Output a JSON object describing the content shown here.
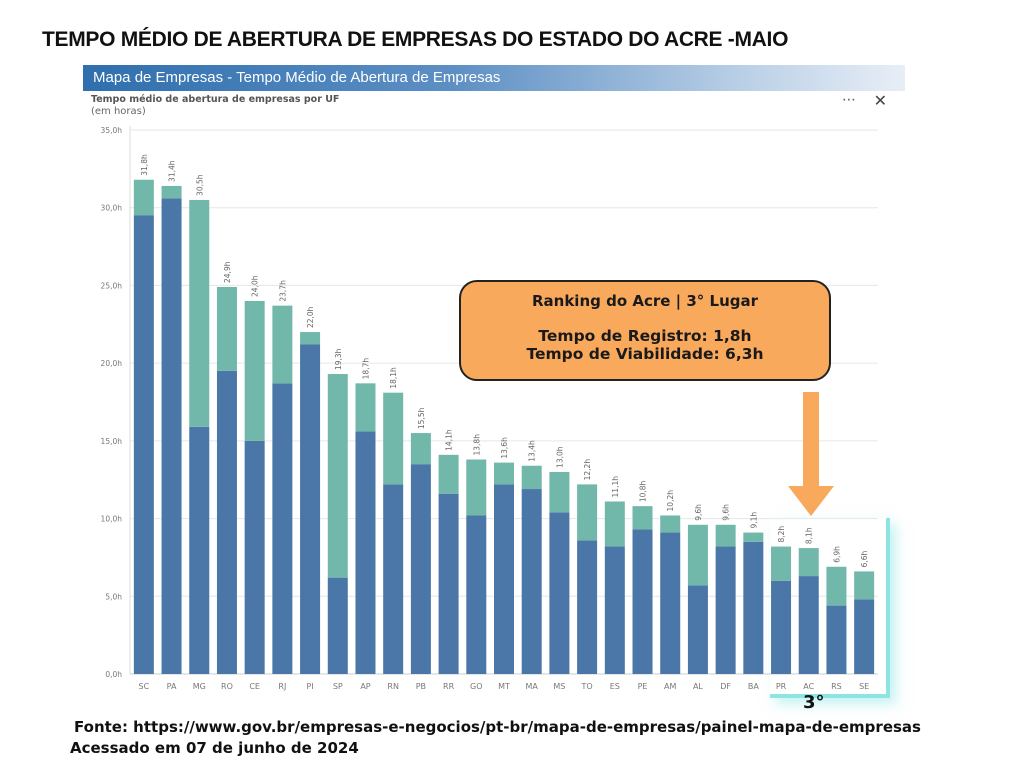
{
  "page_title": "TEMPO MÉDIO DE ABERTURA DE EMPRESAS DO ESTADO DO ACRE -MAIO",
  "panel": {
    "header": "Mapa de Empresas - Tempo Médio de Abertura de Empresas",
    "more_icon": "⋯",
    "close_icon": "✕"
  },
  "callout": {
    "line1": "Ranking do Acre | 3° Lugar",
    "line2": "Tempo de Registro: 1,8h",
    "line3": "Tempo de Viabilidade: 6,3h"
  },
  "rank_label": "3°",
  "footer": {
    "source": "Fonte: https://www.gov.br/empresas-e-negocios/pt-br/mapa-de-empresas/painel-mapa-de-empresas",
    "accessed": "Acessado em 07 de junho de 2024"
  },
  "colors": {
    "dark": "#4a77a8",
    "light": "#71b8ab",
    "accent": "#f9a95c",
    "highlight": "#8ee3e3"
  },
  "chart_data": {
    "type": "bar",
    "stacked": true,
    "title": "Tempo médio de abertura de empresas por UF",
    "subtitle": "(em horas)",
    "ylim": [
      0,
      35
    ],
    "yticks": [
      0,
      5,
      10,
      15,
      20,
      25,
      30,
      35
    ],
    "ytick_labels": [
      "0,0h",
      "5,0h",
      "10,0h",
      "15,0h",
      "20,0h",
      "25,0h",
      "30,0h",
      "35,0h"
    ],
    "grid": true,
    "categories": [
      "SC",
      "PA",
      "MG",
      "RO",
      "CE",
      "RJ",
      "PI",
      "SP",
      "AP",
      "RN",
      "PB",
      "RR",
      "GO",
      "MT",
      "MA",
      "MS",
      "TO",
      "ES",
      "PE",
      "AM",
      "AL",
      "DF",
      "BA",
      "PR",
      "AC",
      "RS",
      "SE"
    ],
    "totals": [
      31.8,
      31.4,
      30.5,
      24.9,
      24.0,
      23.7,
      22.0,
      19.3,
      18.7,
      18.1,
      15.5,
      14.1,
      13.8,
      13.6,
      13.4,
      13.0,
      12.2,
      11.1,
      10.8,
      10.2,
      9.6,
      9.6,
      9.1,
      8.2,
      8.1,
      6.9,
      6.6
    ],
    "total_labels": [
      "31,8h",
      "31,4h",
      "30,5h",
      "24,9h",
      "24,0h",
      "23,7h",
      "22,0h",
      "19,3h",
      "18,7h",
      "18,1h",
      "15,5h",
      "14,1h",
      "13,8h",
      "13,6h",
      "13,4h",
      "13,0h",
      "12,2h",
      "11,1h",
      "10,8h",
      "10,2h",
      "9,6h",
      "9,6h",
      "9,1h",
      "8,2h",
      "8,1h",
      "6,9h",
      "6,6h"
    ],
    "series": [
      {
        "name": "Viabilidade",
        "color": "#4a77a8",
        "values": [
          29.5,
          30.6,
          15.9,
          19.5,
          15.0,
          18.7,
          21.2,
          6.2,
          15.6,
          12.2,
          13.5,
          11.6,
          10.2,
          12.2,
          11.9,
          10.4,
          8.6,
          8.2,
          9.3,
          9.1,
          5.7,
          8.2,
          8.5,
          6.0,
          6.3,
          4.4,
          4.8
        ]
      },
      {
        "name": "Registro",
        "color": "#71b8ab",
        "values": [
          2.3,
          0.8,
          14.6,
          5.4,
          9.0,
          5.0,
          0.8,
          13.1,
          3.1,
          5.9,
          2.0,
          2.5,
          3.6,
          1.4,
          1.5,
          2.6,
          3.6,
          2.9,
          1.5,
          1.1,
          3.9,
          1.4,
          0.6,
          2.2,
          1.8,
          2.5,
          1.8
        ]
      }
    ]
  }
}
